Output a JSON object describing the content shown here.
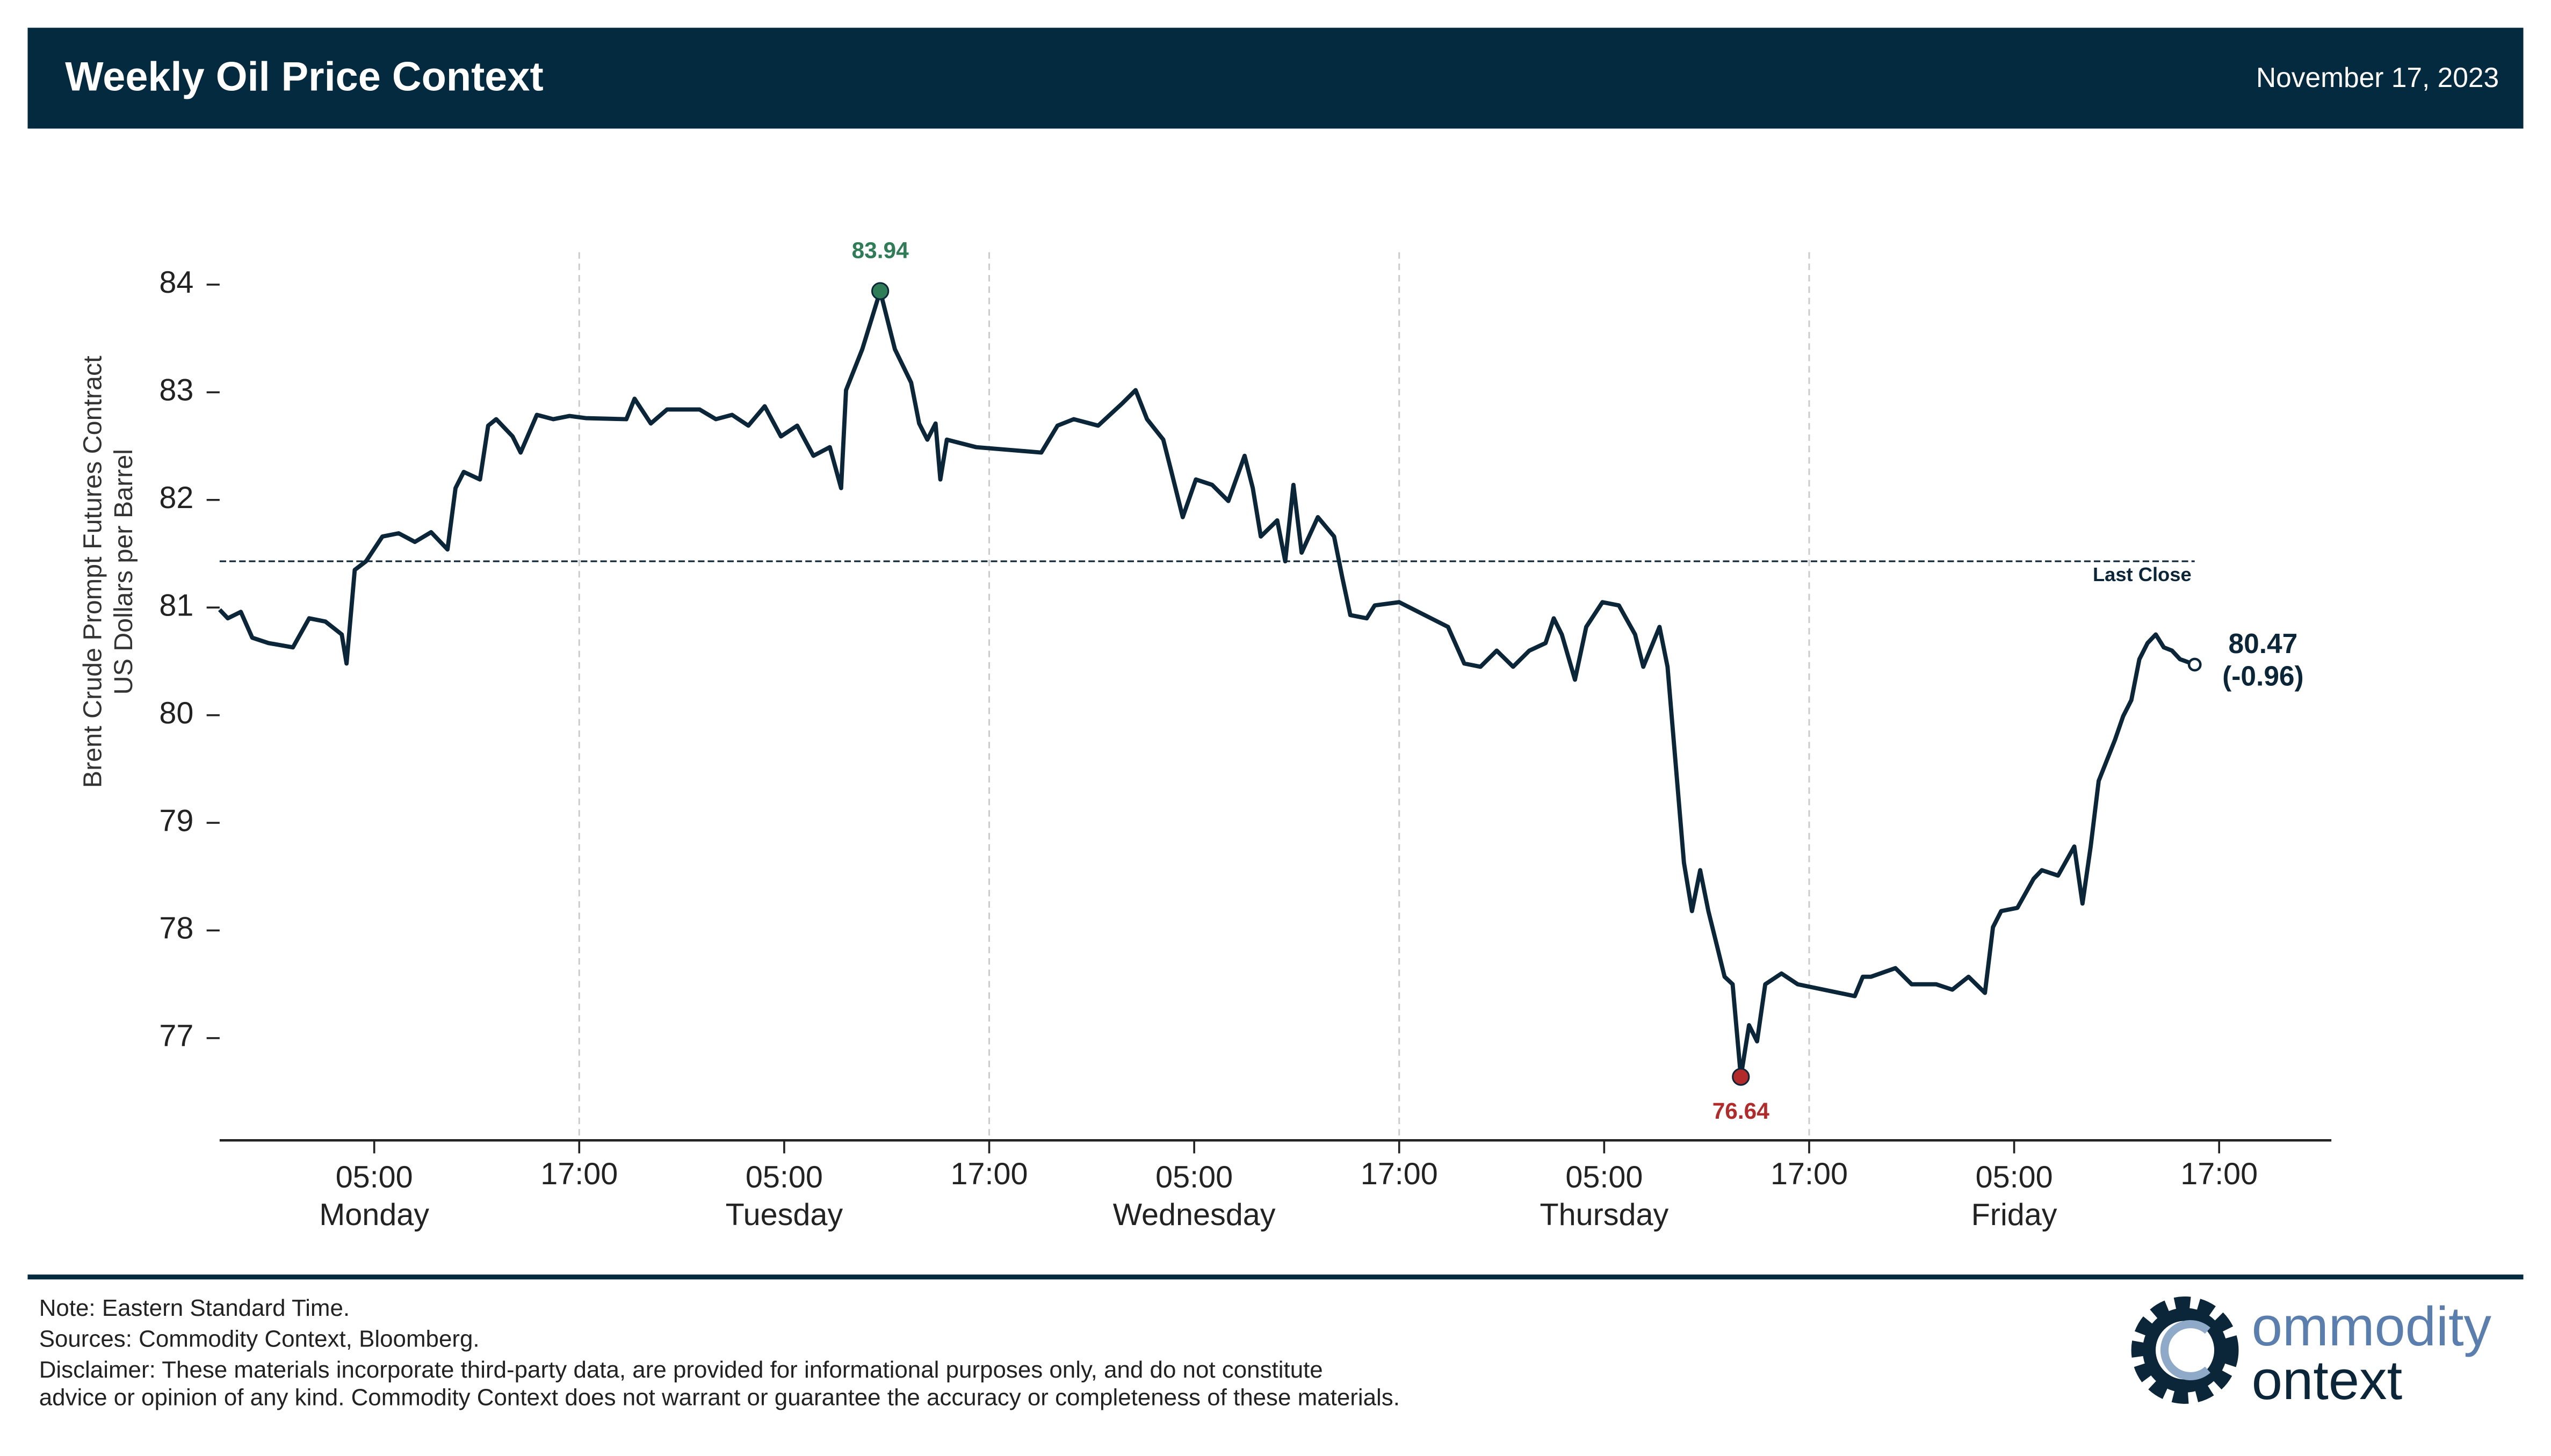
{
  "header": {
    "title": "Weekly Oil Price Context",
    "date": "November 17, 2023"
  },
  "chart_data": {
    "type": "line",
    "ylabel": [
      "Brent Crude Prompt Futures Contract",
      "US Dollars per Barrel"
    ],
    "x": [
      -4.05,
      -3.57,
      -2.81,
      -2.14,
      -1.19,
      0.24,
      1.19,
      2.14,
      3.1,
      3.38,
      3.86,
      4.52,
      5.48,
      6.43,
      7.38,
      8.33,
      9.29,
      9.76,
      10.24,
      11.19,
      11.67,
      12.14,
      13.1,
      13.57,
      14.52,
      15.48,
      16.43,
      17.38,
      19.76,
      20.24,
      21.19,
      22.14,
      24.05,
      25.0,
      25.95,
      26.9,
      27.86,
      28.81,
      29.76,
      30.71,
      31.67,
      32.33,
      32.62,
      33.57,
      34.62,
      35.48,
      36.43,
      36.9,
      37.38,
      37.86,
      38.14,
      38.52,
      40.24,
      44.05,
      45.0,
      45.95,
      47.38,
      48.81,
      49.57,
      50.24,
      51.19,
      51.67,
      52.33,
      53.1,
      54.05,
      55.0,
      55.95,
      56.43,
      56.9,
      57.86,
      58.33,
      58.81,
      59.29,
      60.24,
      61.19,
      61.67,
      62.14,
      63.1,
      63.57,
      65.0,
      67.86,
      68.81,
      69.76,
      70.71,
      71.67,
      72.62,
      73.57,
      74.05,
      74.52,
      75.29,
      75.95,
      76.9,
      77.86,
      78.81,
      79.29,
      80.24,
      80.71,
      81.19,
      81.67,
      82.14,
      82.62,
      83.1,
      83.57,
      84.05,
      84.52,
      85.0,
      85.48,
      85.95,
      86.43,
      87.38,
      88.33,
      91.67,
      92.14,
      92.62,
      94.05,
      95.0,
      96.43,
      97.38,
      98.33,
      99.29,
      99.76,
      100.24,
      101.19,
      102.14,
      102.62,
      103.57,
      104.52,
      105.0,
      105.48,
      105.95,
      106.9,
      107.38,
      107.86,
      108.33,
      108.81,
      109.29,
      109.76,
      110.24,
      110.71,
      111.57
    ],
    "series": [
      {
        "color": "#0b2638",
        "values": [
          80.98,
          80.9,
          80.96,
          80.72,
          80.67,
          80.63,
          80.9,
          80.87,
          80.75,
          80.48,
          81.35,
          81.43,
          81.66,
          81.69,
          81.61,
          81.7,
          81.54,
          82.11,
          82.26,
          82.19,
          82.69,
          82.75,
          82.59,
          82.44,
          82.79,
          82.75,
          82.78,
          82.76,
          82.75,
          82.94,
          82.71,
          82.84,
          82.84,
          82.75,
          82.79,
          82.69,
          82.87,
          82.59,
          82.69,
          82.41,
          82.49,
          82.11,
          83.02,
          83.4,
          83.94,
          83.4,
          83.09,
          82.71,
          82.56,
          82.71,
          82.19,
          82.56,
          82.49,
          82.44,
          82.69,
          82.75,
          82.69,
          82.9,
          83.02,
          82.75,
          82.56,
          82.26,
          81.84,
          82.19,
          82.14,
          81.99,
          82.41,
          82.11,
          81.66,
          81.81,
          81.43,
          82.14,
          81.51,
          81.84,
          81.66,
          81.28,
          80.93,
          80.9,
          81.02,
          81.05,
          80.82,
          80.48,
          80.45,
          80.6,
          80.45,
          80.6,
          80.67,
          80.9,
          80.75,
          80.33,
          80.82,
          81.05,
          81.02,
          80.75,
          80.45,
          80.82,
          80.45,
          79.54,
          78.63,
          78.18,
          78.56,
          78.18,
          77.88,
          77.57,
          77.5,
          76.64,
          77.12,
          76.97,
          77.5,
          77.6,
          77.5,
          77.39,
          77.57,
          77.57,
          77.65,
          77.5,
          77.5,
          77.45,
          77.57,
          77.42,
          78.03,
          78.18,
          78.21,
          78.48,
          78.56,
          78.51,
          78.78,
          78.25,
          78.78,
          79.39,
          79.77,
          79.99,
          80.14,
          80.52,
          80.67,
          80.75,
          80.63,
          80.6,
          80.52,
          80.47
        ]
      }
    ],
    "xlim": [
      -4.05,
      119.57
    ],
    "ylim": [
      76.05,
      84.8
    ],
    "yticks": [
      77,
      78,
      79,
      80,
      81,
      82,
      83,
      84
    ],
    "xticks": [
      {
        "value": 5,
        "label": "05:00"
      },
      {
        "value": 17,
        "label": "17:00"
      },
      {
        "value": 29,
        "label": "05:00"
      },
      {
        "value": 41,
        "label": "17:00"
      },
      {
        "value": 53,
        "label": "05:00"
      },
      {
        "value": 65,
        "label": "17:00"
      },
      {
        "value": 77,
        "label": "05:00"
      },
      {
        "value": 89,
        "label": "17:00"
      },
      {
        "value": 101,
        "label": "05:00"
      },
      {
        "value": 113,
        "label": "17:00"
      }
    ],
    "x_day_labels": [
      {
        "value": 5,
        "label": "Monday"
      },
      {
        "value": 29,
        "label": "Tuesday"
      },
      {
        "value": 53,
        "label": "Wednesday"
      },
      {
        "value": 77,
        "label": "Thursday"
      },
      {
        "value": 101,
        "label": "Friday"
      }
    ],
    "xgrid": [
      17,
      41,
      65,
      89
    ],
    "high": {
      "x": 34.62,
      "value": 83.94,
      "color": "#2e7d57"
    },
    "low": {
      "x": 85.0,
      "value": 76.64,
      "color": "#b22a2a"
    },
    "last": {
      "x": 111.57,
      "value": 80.47,
      "change": -0.96,
      "change_label": "(-0.96)"
    },
    "reference_line": {
      "value": 81.43,
      "label": "Last Close"
    }
  },
  "footer": {
    "notes": [
      "Note: Eastern Standard Time.",
      "Sources: Commodity Context, Bloomberg.",
      "Disclaimer: These materials incorporate third-party data, are provided for informational purposes only, and do not constitute",
      "advice or opinion of any kind. Commodity Context does not warrant or guarantee the accuracy or completeness of these materials."
    ],
    "logo": [
      "ommodity",
      "ontext"
    ]
  }
}
